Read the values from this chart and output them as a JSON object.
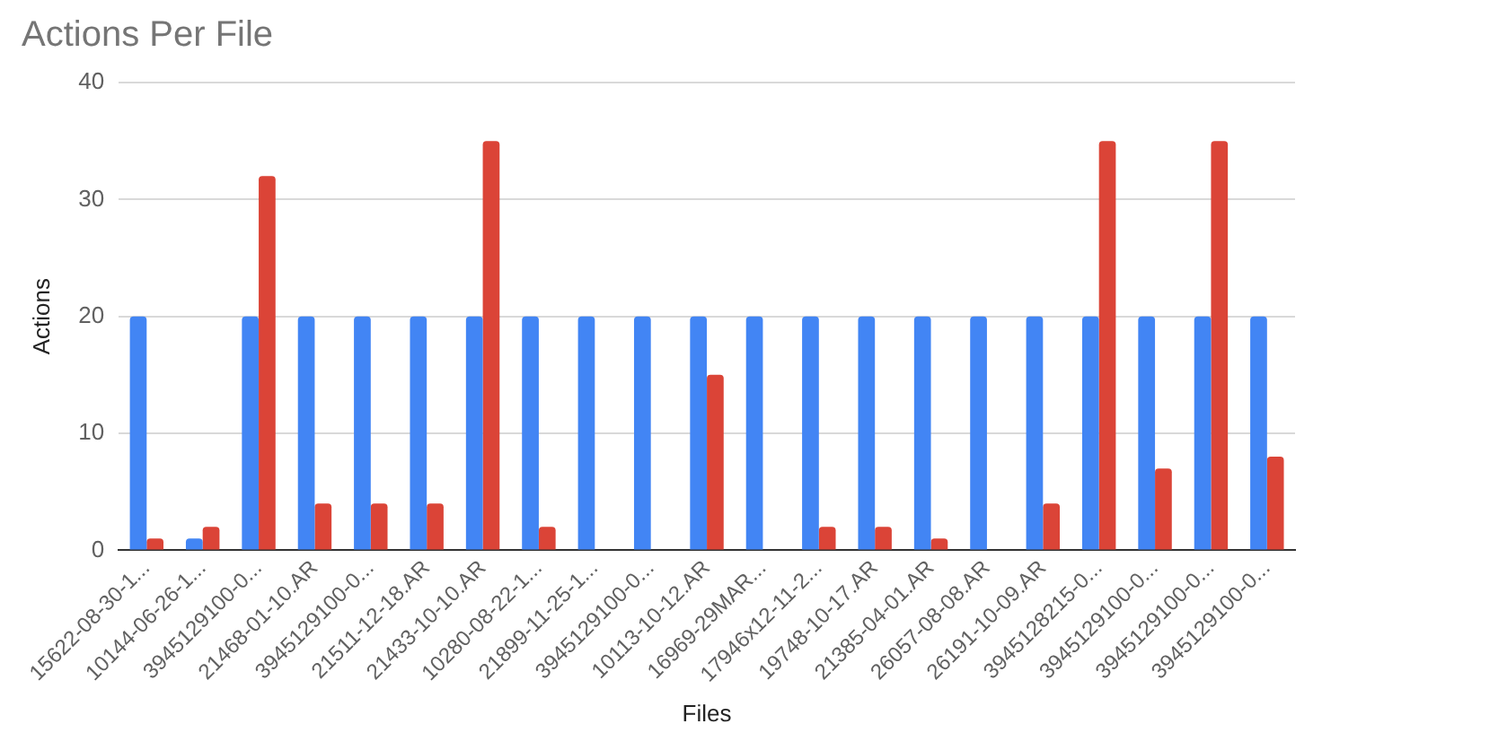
{
  "chart_data": {
    "type": "bar",
    "title": "Actions Per File",
    "xlabel": "Files",
    "ylabel": "Actions",
    "categories": [
      "15622-08-30-1...",
      "10144-06-26-1...",
      "3945129100-0...",
      "21468-01-10.AR",
      "3945129100-0...",
      "21511-12-18.AR",
      "21433-10-10.AR",
      "10280-08-22-1...",
      "21899-11-25-1...",
      "3945129100-0...",
      "10113-10-12.AR",
      "16969-29MAR...",
      "17946x12-11-2...",
      "19748-10-17.AR",
      "21385-04-01.AR",
      "26057-08-08.AR",
      "26191-10-09.AR",
      "3945128215-0...",
      "3945129100-0...",
      "3945129100-0...",
      "3945129100-0..."
    ],
    "series": [
      {
        "color": "#4285f4",
        "values": [
          20,
          1,
          20,
          20,
          20,
          20,
          20,
          20,
          20,
          20,
          20,
          20,
          20,
          20,
          20,
          20,
          20,
          20,
          20,
          20,
          20
        ]
      },
      {
        "color": "#db4437",
        "values": [
          1,
          2,
          32,
          4,
          4,
          4,
          35,
          2,
          0,
          0,
          15,
          0,
          2,
          2,
          1,
          0,
          4,
          35,
          7,
          35,
          8
        ]
      }
    ],
    "ylim": [
      0,
      40
    ],
    "yticks": [
      0,
      10,
      20,
      30,
      40
    ],
    "grid": "y",
    "legend": false
  }
}
